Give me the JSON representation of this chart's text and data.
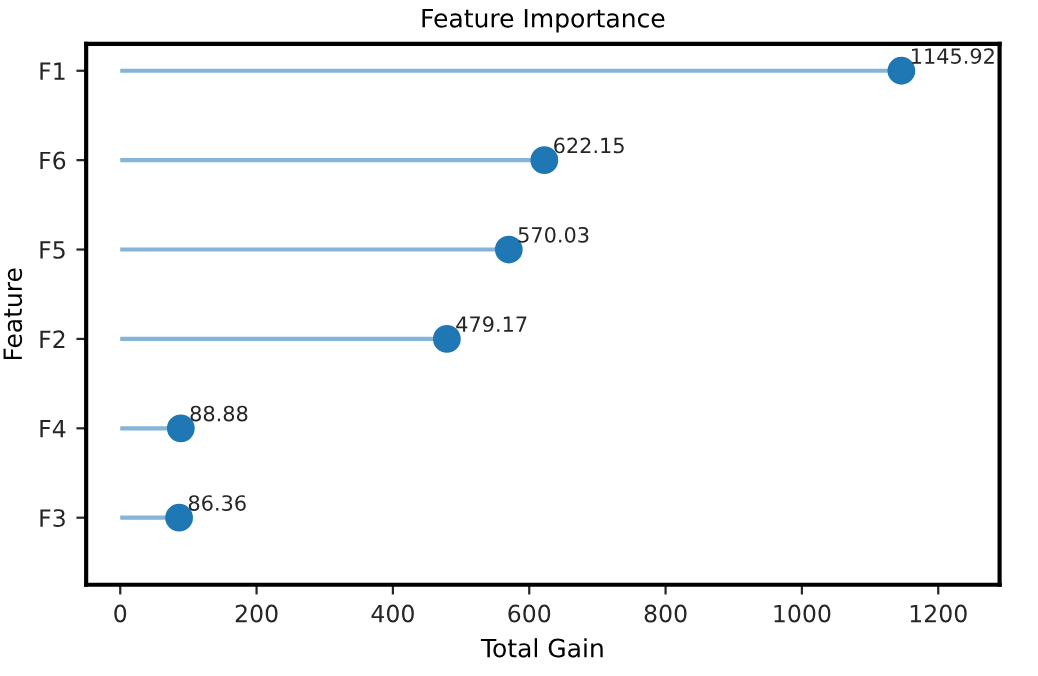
{
  "chart_data": {
    "type": "lollipop",
    "title": "Feature Importance",
    "xlabel": "Total Gain",
    "ylabel": "Feature",
    "orientation": "horizontal",
    "categories": [
      "F1",
      "F6",
      "F5",
      "F2",
      "F4",
      "F3"
    ],
    "values": [
      1145.92,
      622.15,
      570.03,
      479.17,
      88.88,
      86.36
    ],
    "color": "#1f77b4",
    "marker": "circle",
    "data_labels": true,
    "xlim": [
      -50,
      1290
    ],
    "xticks": [
      0,
      200,
      400,
      600,
      800,
      1000,
      1200
    ],
    "grid": false
  }
}
